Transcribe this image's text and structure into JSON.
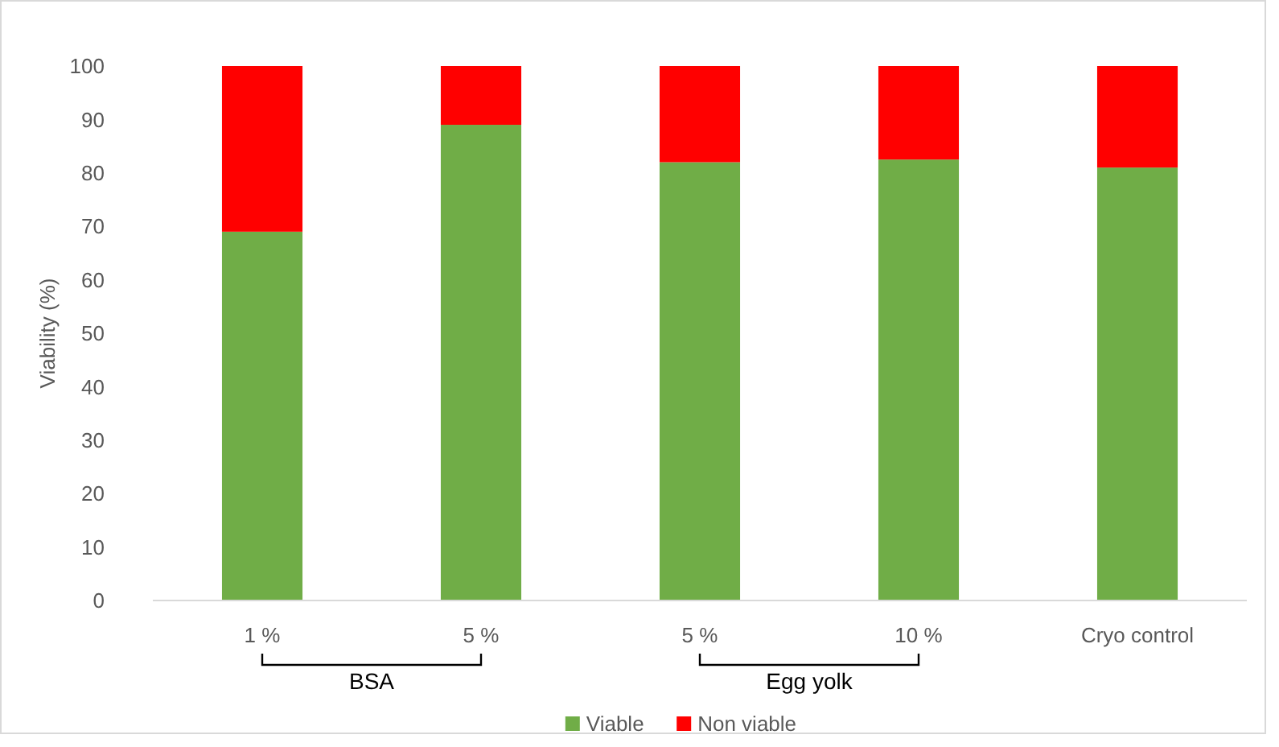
{
  "chart_data": {
    "type": "bar",
    "stacked": true,
    "ylabel": "Viability (%)",
    "categories": [
      "1 %",
      "5 %",
      "5 %",
      "10 %",
      "Cryo control"
    ],
    "series": [
      {
        "name": "Viable",
        "color": "#70ad47",
        "values": [
          69,
          89,
          82,
          82.5,
          81
        ]
      },
      {
        "name": "Non viable",
        "color": "#ff0000",
        "values": [
          31,
          11,
          18,
          17.5,
          19
        ]
      }
    ],
    "ylim": [
      0,
      100
    ],
    "yticks": [
      0,
      10,
      20,
      30,
      40,
      50,
      60,
      70,
      80,
      90,
      100
    ],
    "grid": false,
    "legend": "bottom",
    "annotations": [
      "BSA",
      "Egg yolk"
    ]
  }
}
